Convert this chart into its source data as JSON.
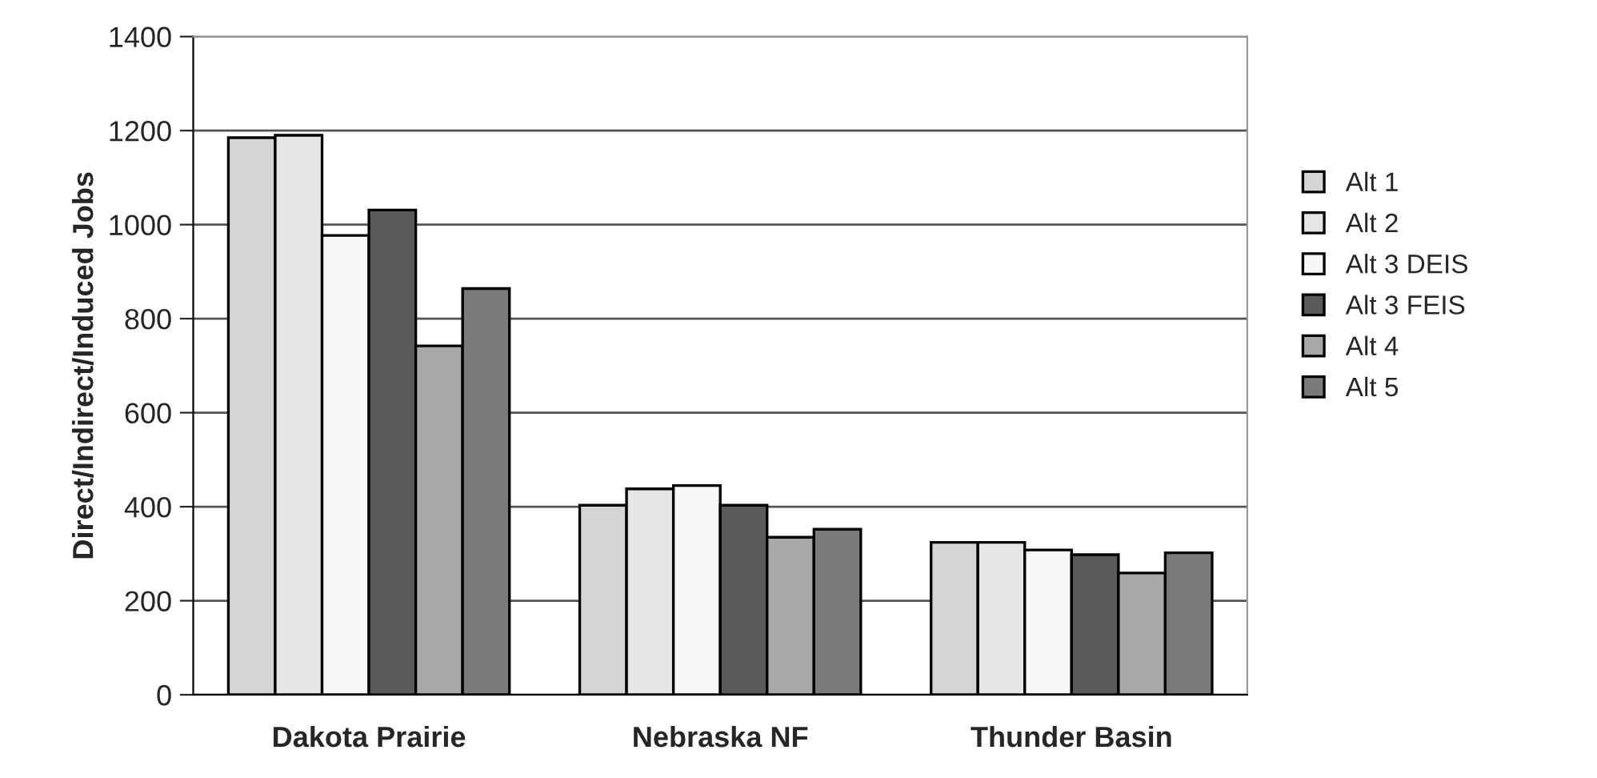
{
  "chart_data": {
    "type": "bar",
    "ylabel": "Direct/Indirect/Induced Jobs",
    "categories": [
      "Dakota Prairie",
      "Nebraska NF",
      "Thunder Basin"
    ],
    "series": [
      {
        "name": "Alt 1",
        "color": "#d4d4d4",
        "values": [
          1185,
          403,
          324
        ]
      },
      {
        "name": "Alt 2",
        "color": "#e6e6e6",
        "values": [
          1190,
          438,
          324
        ]
      },
      {
        "name": "Alt 3 DEIS",
        "color": "#f7f7f7",
        "values": [
          977,
          445,
          308
        ]
      },
      {
        "name": "Alt 3 FEIS",
        "color": "#5a5a5a",
        "values": [
          1031,
          403,
          298
        ]
      },
      {
        "name": "Alt 4",
        "color": "#a8a8a8",
        "values": [
          742,
          335,
          259
        ]
      },
      {
        "name": "Alt 5",
        "color": "#7a7a7a",
        "values": [
          864,
          352,
          302
        ]
      }
    ],
    "ylim": [
      0,
      1400
    ],
    "yticks": [
      0,
      200,
      400,
      600,
      800,
      1000,
      1200,
      1400
    ],
    "grid": "y",
    "legend": "right"
  }
}
